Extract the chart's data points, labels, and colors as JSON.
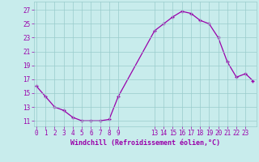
{
  "x": [
    0,
    1,
    2,
    3,
    4,
    5,
    6,
    7,
    8,
    9,
    13,
    14,
    15,
    16,
    17,
    18,
    19,
    20,
    21,
    22,
    23,
    23.8
  ],
  "y": [
    16.0,
    14.5,
    13.0,
    12.5,
    11.5,
    11.0,
    11.0,
    11.0,
    11.2,
    14.5,
    24.0,
    25.0,
    26.0,
    26.8,
    26.5,
    25.5,
    25.0,
    23.0,
    19.5,
    17.3,
    17.8,
    16.8
  ],
  "line_color": "#9900AA",
  "marker_color": "#9900AA",
  "bg_color": "#C8ECEC",
  "grid_color": "#99CCCC",
  "axis_label_color": "#9900AA",
  "tick_color": "#9900AA",
  "xlabel": "Windchill (Refroidissement éolien,°C)",
  "xticks": [
    0,
    1,
    2,
    3,
    4,
    5,
    6,
    7,
    8,
    9,
    13,
    14,
    15,
    16,
    17,
    18,
    19,
    20,
    21,
    22,
    23
  ],
  "xtick_labels": [
    "0",
    "1",
    "2",
    "3",
    "4",
    "5",
    "6",
    "7",
    "8",
    "9",
    "13",
    "14",
    "15",
    "16",
    "17",
    "18",
    "19",
    "20",
    "21",
    "22",
    "23"
  ],
  "yticks": [
    11,
    13,
    15,
    17,
    19,
    21,
    23,
    25,
    27
  ],
  "ytick_labels": [
    "11",
    "13",
    "15",
    "17",
    "19",
    "21",
    "23",
    "25",
    "27"
  ],
  "ylim": [
    10.2,
    28.2
  ],
  "xlim": [
    -0.3,
    24.2
  ]
}
